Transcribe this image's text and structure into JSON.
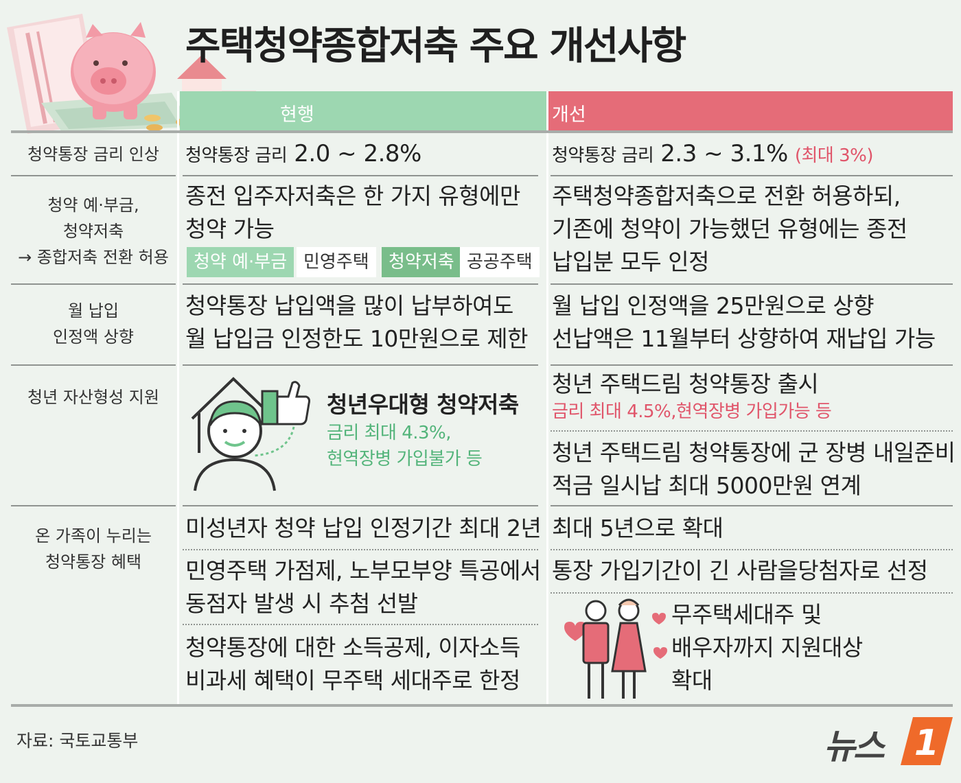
{
  "title": "주택청약종합저축 주요 개선사항",
  "headers": {
    "current": "현행",
    "improved": "개선"
  },
  "rows": {
    "rate": {
      "label": "청약통장 금리 인상",
      "current_prefix": "청약통장 금리",
      "current_value": "2.0 ~ 2.8%",
      "new_prefix": "청약통장 금리",
      "new_value": "2.3 ~ 3.1%",
      "new_note": "(최대 3%)"
    },
    "conversion": {
      "label_line1": "청약 예·부금,",
      "label_line2": "청약저축",
      "label_line3": "→ 종합저축 전환 허용",
      "current_line1": "종전 입주자저축은 한 가지 유형에만",
      "current_line2": "청약 가능",
      "tags": [
        "청약 예·부금",
        "민영주택",
        "청약저축",
        "공공주택"
      ],
      "new_line1": "주택청약종합저축으로 전환 허용하되,",
      "new_line2": "기존에 청약이 가능했던 유형에는 종전",
      "new_line3": "납입분 모두 인정"
    },
    "monthly": {
      "label_line1": "월 납입",
      "label_line2": "인정액 상향",
      "current_line1": "청약통장 납입액을 많이 납부하여도",
      "current_line2": "월 납입금 인정한도 10만원으로 제한",
      "new_line1": "월 납입 인정액을 25만원으로 상향",
      "new_line2": "선납액은 11월부터 상향하여 재납입 가능"
    },
    "youth": {
      "label": "청년 자산형성 지원",
      "current_title": "청년우대형 청약저축",
      "current_note1": "금리 최대 4.3%,",
      "current_note2": "현역장병 가입불가 등",
      "new_title": "청년 주택드림 청약통장 출시",
      "new_note": "금리 최대 4.5%,현역장병 가입가능 등",
      "new2_line1": "청년 주택드림 청약통장에 군 장병 내일준비",
      "new2_line2": "적금 일시납 최대 5000만원 연계"
    },
    "family": {
      "label_line1": "온 가족이 누리는",
      "label_line2": "청약통장 혜택",
      "c1": "미성년자 청약 납입 인정기간 최대 2년",
      "n1": "최대 5년으로 확대",
      "c2_line1": "민영주택 가점제, 노부모부양 특공에서",
      "c2_line2": "동점자 발생 시 추첨 선발",
      "n2": "통장 가입기간이 긴 사람을당첨자로 선정",
      "c3_line1": "청약통장에 대한 소득공제, 이자소득",
      "c3_line2": "비과세 혜택이 무주택 세대주로 한정",
      "n3_line1": "무주택세대주 및",
      "n3_line2": "배우자까지 지원대상",
      "n3_line3": "확대"
    }
  },
  "source": "자료: 국토교통부",
  "logo_text": "뉴스",
  "logo_number": "1",
  "colors": {
    "current": "#9dd7b1",
    "improved": "#e56c78",
    "red_text": "#e0556a",
    "green_text": "#53b47a",
    "logo_orange": "#ef6a2a"
  }
}
